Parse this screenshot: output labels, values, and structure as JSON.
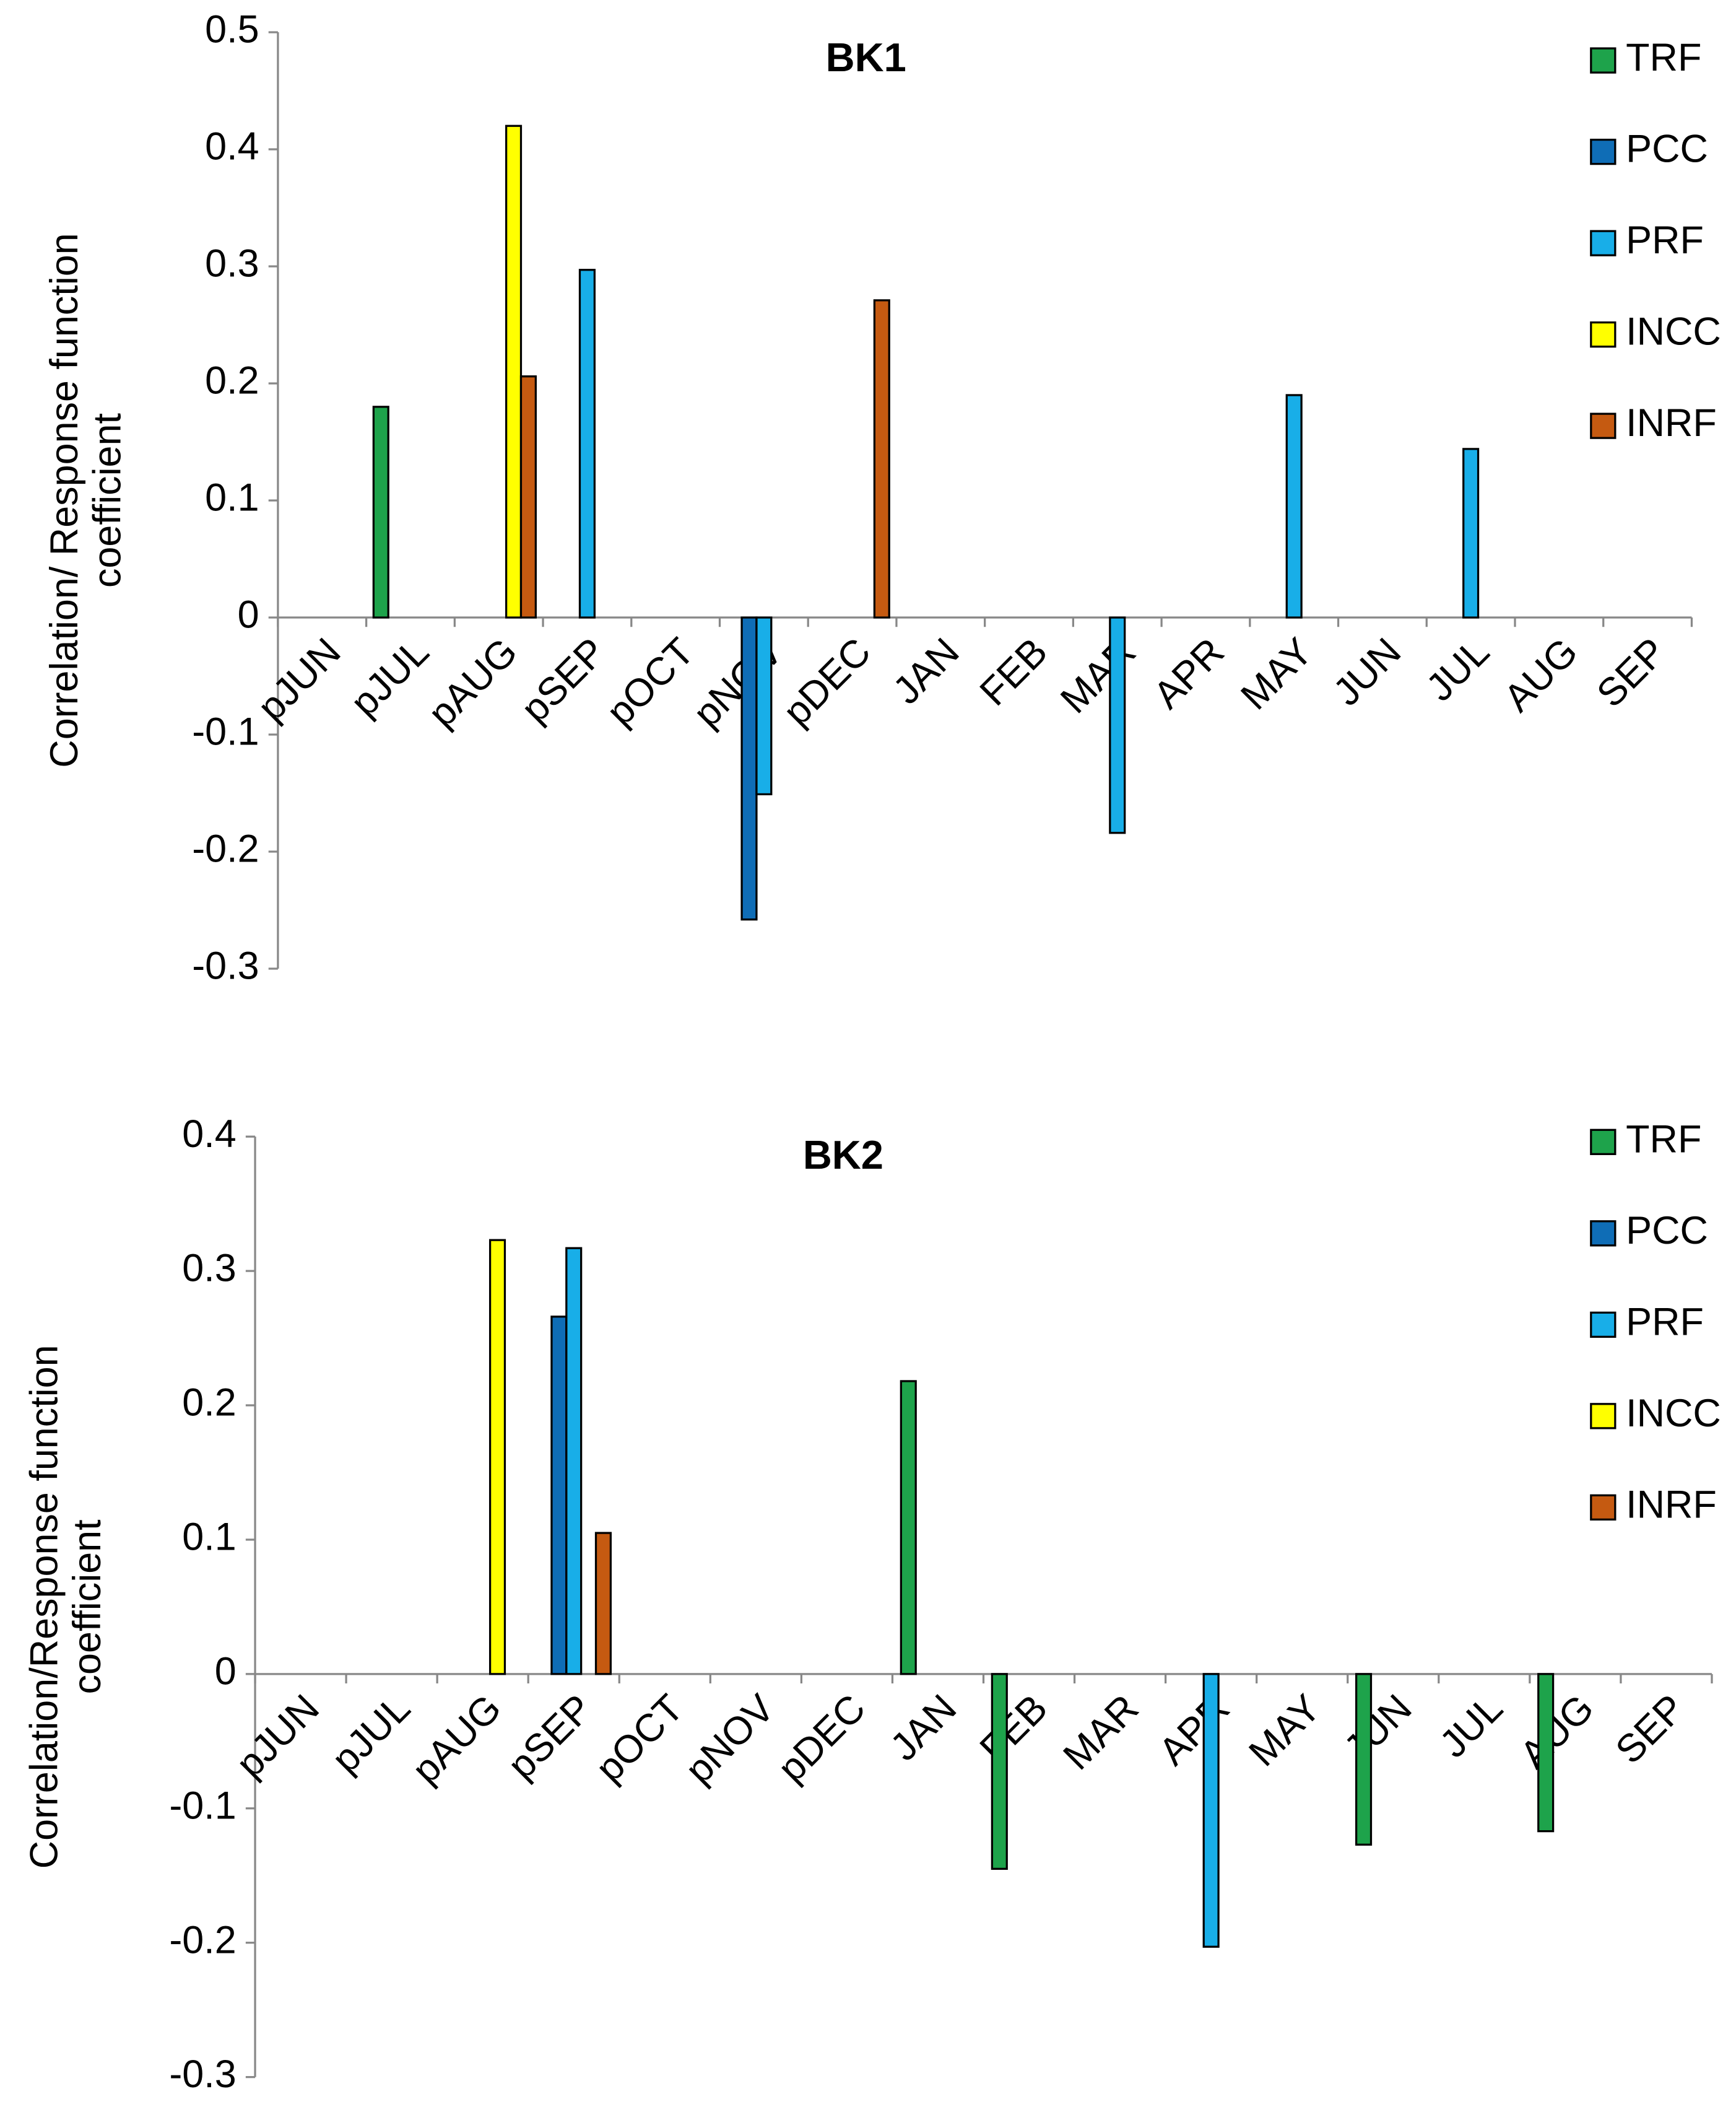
{
  "chart_data": [
    {
      "type": "bar",
      "title": "BK1",
      "ylabel": [
        "Correlation/ Response function",
        "coefficient"
      ],
      "categories": [
        "pJUN",
        "pJUL",
        "pAUG",
        "pSEP",
        "pOCT",
        "pNOV",
        "pDEC",
        "JAN",
        "FEB",
        "MAR",
        "APR",
        "MAY",
        "JUN",
        "JUL",
        "AUG",
        "SEP"
      ],
      "series": [
        {
          "name": "TRF",
          "color": "#1ea34b",
          "values": [
            null,
            0.18,
            null,
            null,
            null,
            null,
            null,
            null,
            null,
            null,
            null,
            null,
            null,
            null,
            null,
            null
          ]
        },
        {
          "name": "PCC",
          "color": "#0f6db6",
          "values": [
            null,
            null,
            null,
            null,
            null,
            -0.258,
            null,
            null,
            null,
            null,
            null,
            null,
            null,
            null,
            null,
            null
          ]
        },
        {
          "name": "PRF",
          "color": "#18aee8",
          "values": [
            null,
            null,
            null,
            0.297,
            null,
            -0.151,
            null,
            null,
            null,
            -0.184,
            null,
            0.19,
            null,
            0.144,
            null,
            null
          ]
        },
        {
          "name": "INCC",
          "color": "#ffff00",
          "values": [
            null,
            null,
            0.42,
            null,
            null,
            null,
            null,
            null,
            null,
            null,
            null,
            null,
            null,
            null,
            null,
            null
          ]
        },
        {
          "name": "INRF",
          "color": "#c55a11",
          "values": [
            null,
            null,
            0.206,
            null,
            null,
            null,
            0.271,
            null,
            null,
            null,
            null,
            null,
            null,
            null,
            null,
            null
          ]
        }
      ],
      "ylim": [
        -0.3,
        0.5
      ],
      "yticks": [
        -0.3,
        -0.2,
        -0.1,
        0,
        0.1,
        0.2,
        0.3,
        0.4,
        0.5
      ],
      "legend": "top-right"
    },
    {
      "type": "bar",
      "title": "BK2",
      "ylabel": [
        "Correlation/Response function",
        "coefficient"
      ],
      "categories": [
        "pJUN",
        "pJUL",
        "pAUG",
        "pSEP",
        "pOCT",
        "pNOV",
        "pDEC",
        "JAN",
        "FEB",
        "MAR",
        "APR",
        "MAY",
        "JUN",
        "JUL",
        "AUG",
        "SEP"
      ],
      "series": [
        {
          "name": "TRF",
          "color": "#1ea34b",
          "values": [
            null,
            null,
            null,
            null,
            null,
            null,
            null,
            0.218,
            -0.145,
            null,
            null,
            null,
            -0.127,
            null,
            -0.117,
            null
          ]
        },
        {
          "name": "PCC",
          "color": "#0f6db6",
          "values": [
            null,
            null,
            null,
            0.266,
            null,
            null,
            null,
            null,
            null,
            null,
            null,
            null,
            null,
            null,
            null,
            null
          ]
        },
        {
          "name": "PRF",
          "color": "#18aee8",
          "values": [
            null,
            null,
            null,
            0.317,
            null,
            null,
            null,
            null,
            null,
            null,
            -0.203,
            null,
            null,
            null,
            null,
            null
          ]
        },
        {
          "name": "INCC",
          "color": "#ffff00",
          "values": [
            null,
            null,
            0.323,
            null,
            null,
            null,
            null,
            null,
            null,
            null,
            null,
            null,
            null,
            null,
            null,
            null
          ]
        },
        {
          "name": "INRF",
          "color": "#c55a11",
          "values": [
            null,
            null,
            null,
            0.105,
            null,
            null,
            null,
            null,
            null,
            null,
            null,
            null,
            null,
            null,
            null,
            null
          ]
        }
      ],
      "ylim": [
        -0.3,
        0.4
      ],
      "yticks": [
        -0.3,
        -0.2,
        -0.1,
        0,
        0.1,
        0.2,
        0.3,
        0.4
      ],
      "legend": "top-right"
    }
  ]
}
